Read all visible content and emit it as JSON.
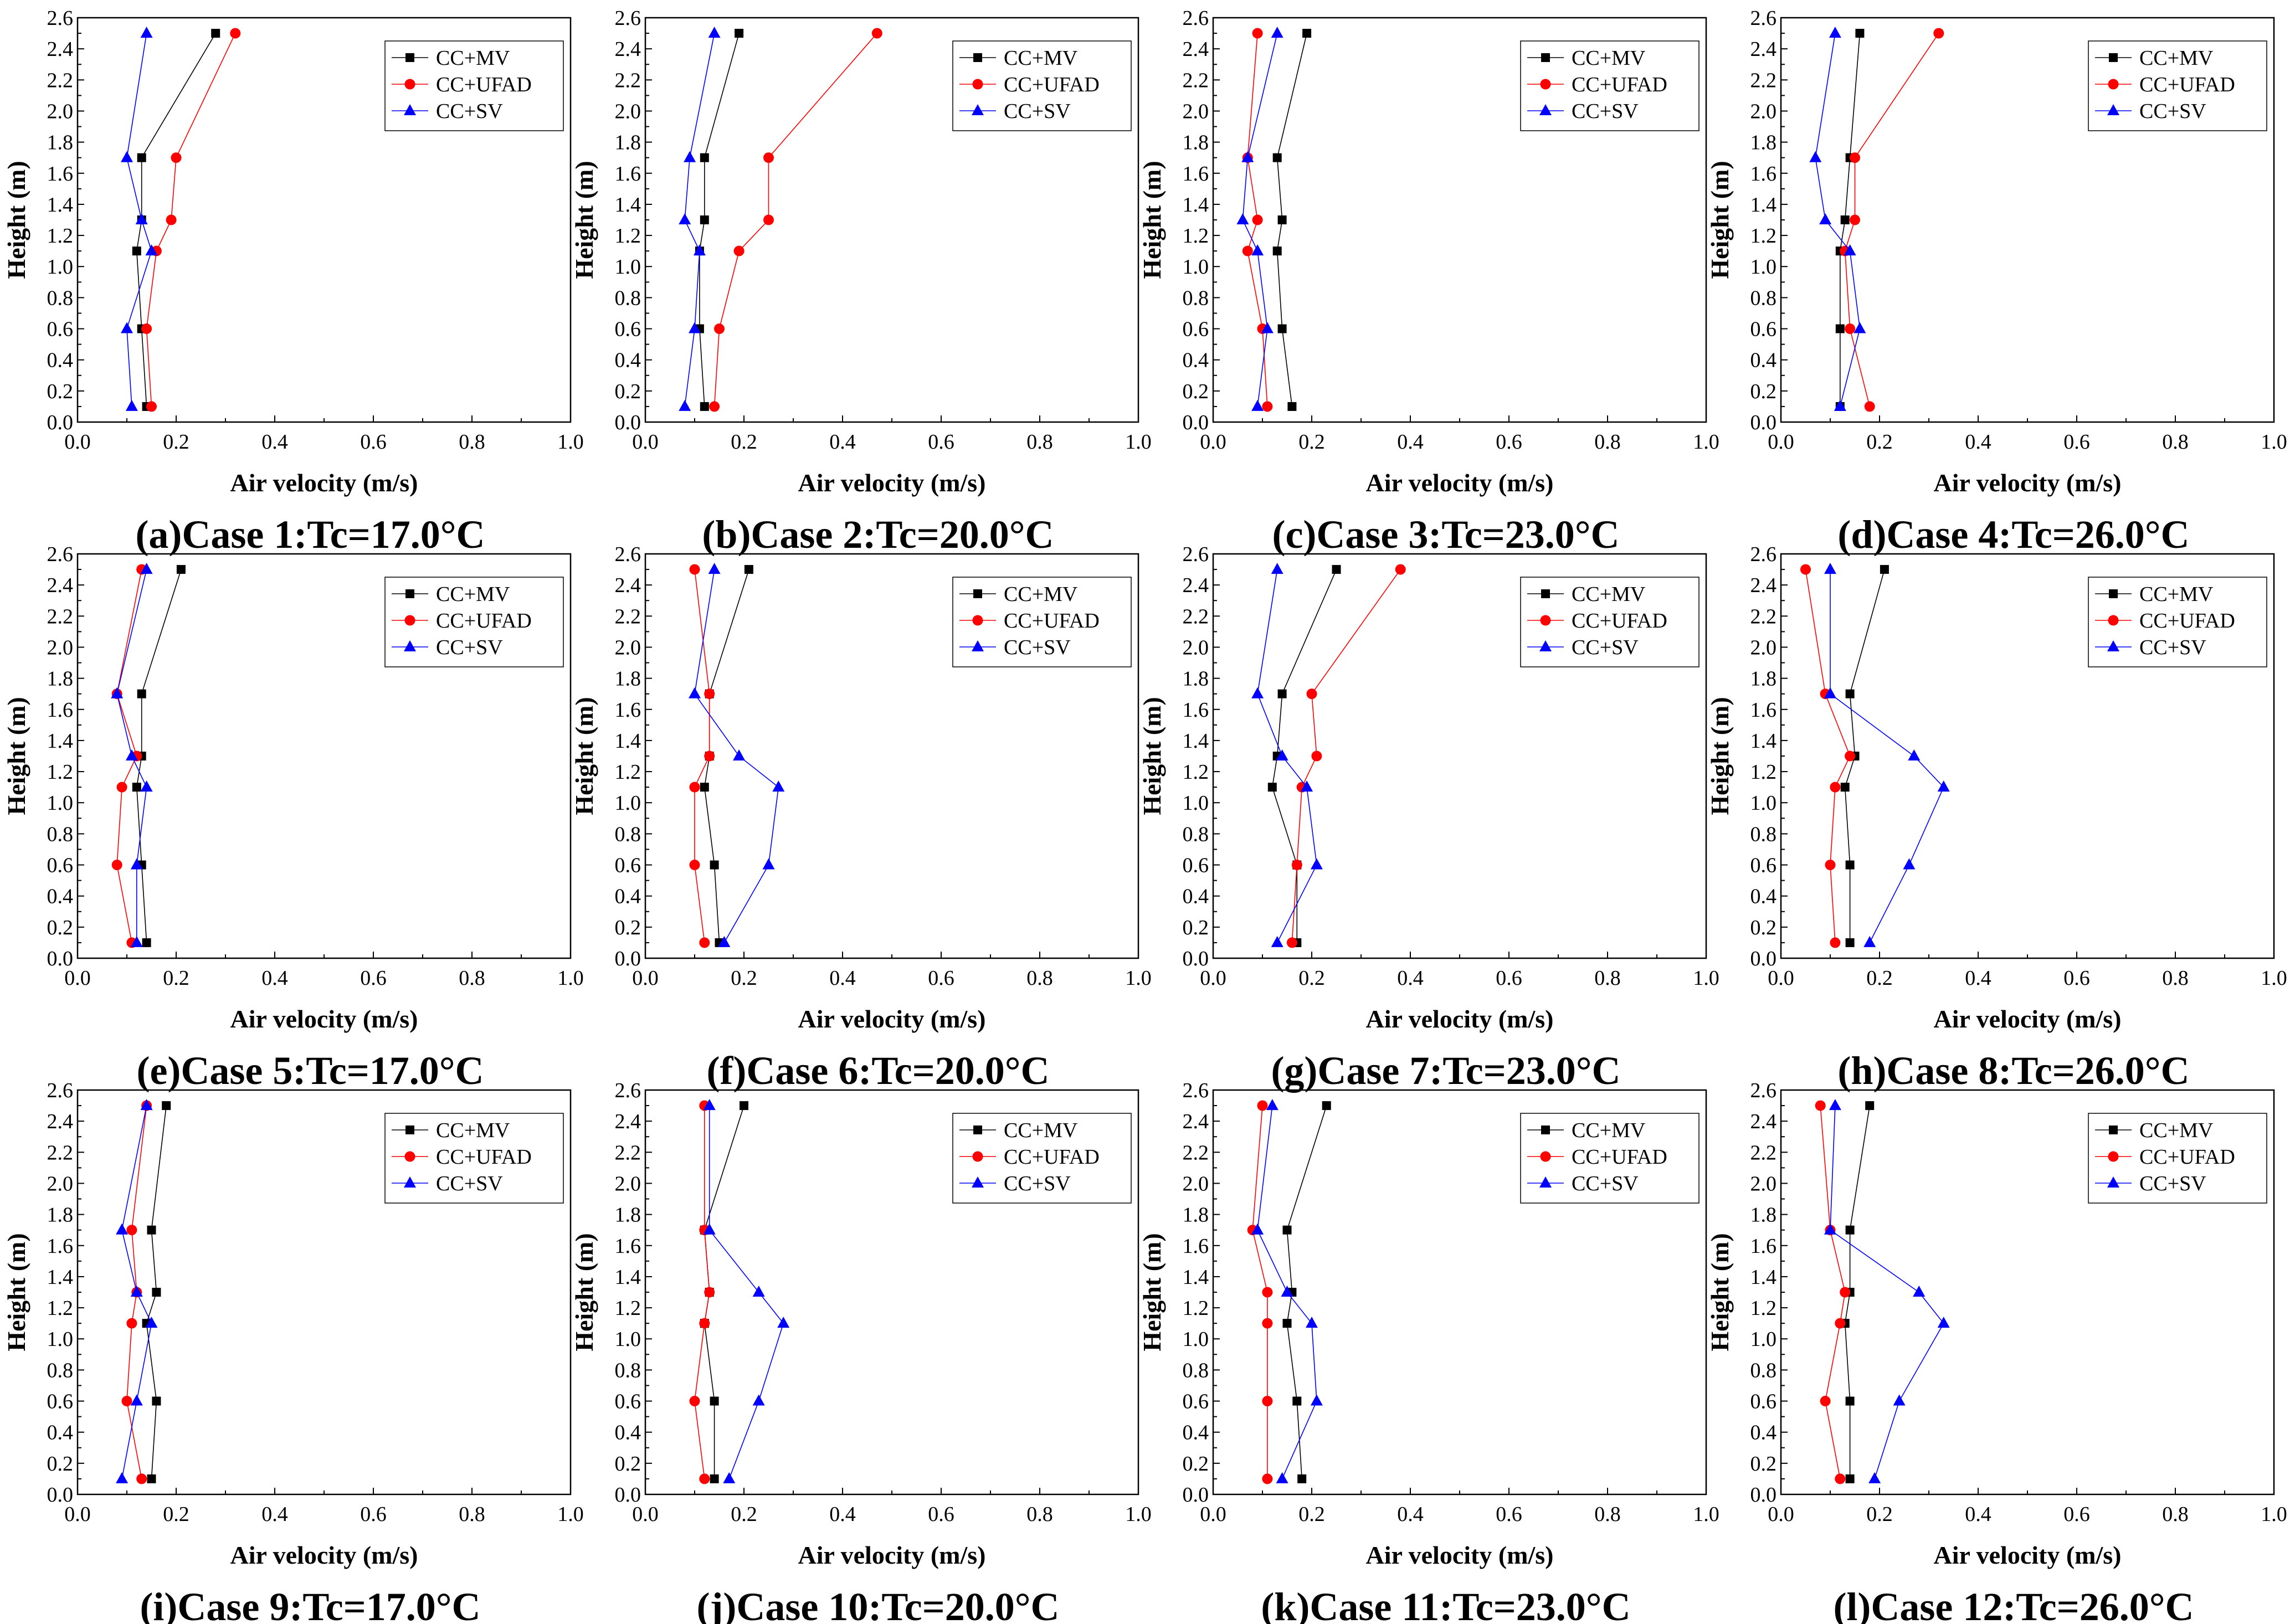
{
  "series_styles": [
    {
      "name": "CC+MV",
      "color": "#000000",
      "marker": "square"
    },
    {
      "name": "CC+UFAD",
      "color": "#ff0000",
      "marker": "circle"
    },
    {
      "name": "CC+SV",
      "color": "#0000ff",
      "marker": "triangle"
    }
  ],
  "axes": {
    "xlabel": "Air velocity (m/s)",
    "ylabel": "Height (m)",
    "xlim": [
      0,
      1.0
    ],
    "ylim": [
      0,
      2.6
    ],
    "xticks": [
      "0.0",
      "0.2",
      "0.4",
      "0.6",
      "0.8",
      "1.0"
    ],
    "yticks": [
      "0.0",
      "0.2",
      "0.4",
      "0.6",
      "0.8",
      "1.0",
      "1.2",
      "1.4",
      "1.6",
      "1.8",
      "2.0",
      "2.2",
      "2.4",
      "2.6"
    ]
  },
  "chart_data": [
    {
      "type": "line",
      "caption": "(a)Case 1:Tc=17.0°C",
      "y": [
        0.1,
        0.6,
        1.1,
        1.3,
        1.7,
        2.5
      ],
      "series": [
        {
          "name": "CC+MV",
          "values": [
            0.14,
            0.13,
            0.12,
            0.13,
            0.13,
            0.28
          ]
        },
        {
          "name": "CC+UFAD",
          "values": [
            0.15,
            0.14,
            0.16,
            0.19,
            0.2,
            0.32
          ]
        },
        {
          "name": "CC+SV",
          "values": [
            0.11,
            0.1,
            0.15,
            0.13,
            0.1,
            0.14
          ]
        }
      ]
    },
    {
      "type": "line",
      "caption": "(b)Case 2:Tc=20.0°C",
      "y": [
        0.1,
        0.6,
        1.1,
        1.3,
        1.7,
        2.5
      ],
      "series": [
        {
          "name": "CC+MV",
          "values": [
            0.12,
            0.11,
            0.11,
            0.12,
            0.12,
            0.19
          ]
        },
        {
          "name": "CC+UFAD",
          "values": [
            0.14,
            0.15,
            0.19,
            0.25,
            0.25,
            0.47
          ]
        },
        {
          "name": "CC+SV",
          "values": [
            0.08,
            0.1,
            0.11,
            0.08,
            0.09,
            0.14
          ]
        }
      ]
    },
    {
      "type": "line",
      "caption": "(c)Case 3:Tc=23.0°C",
      "y": [
        0.1,
        0.6,
        1.1,
        1.3,
        1.7,
        2.5
      ],
      "series": [
        {
          "name": "CC+MV",
          "values": [
            0.16,
            0.14,
            0.13,
            0.14,
            0.13,
            0.19
          ]
        },
        {
          "name": "CC+UFAD",
          "values": [
            0.11,
            0.1,
            0.07,
            0.09,
            0.07,
            0.09
          ]
        },
        {
          "name": "CC+SV",
          "values": [
            0.09,
            0.11,
            0.09,
            0.06,
            0.07,
            0.13
          ]
        }
      ]
    },
    {
      "type": "line",
      "caption": "(d)Case 4:Tc=26.0°C",
      "y": [
        0.1,
        0.6,
        1.1,
        1.3,
        1.7,
        2.5
      ],
      "series": [
        {
          "name": "CC+MV",
          "values": [
            0.12,
            0.12,
            0.12,
            0.13,
            0.14,
            0.16
          ]
        },
        {
          "name": "CC+UFAD",
          "values": [
            0.18,
            0.14,
            0.13,
            0.15,
            0.15,
            0.32
          ]
        },
        {
          "name": "CC+SV",
          "values": [
            0.12,
            0.16,
            0.14,
            0.09,
            0.07,
            0.11
          ]
        }
      ]
    },
    {
      "type": "line",
      "caption": "(e)Case 5:Tc=17.0°C",
      "y": [
        0.1,
        0.6,
        1.1,
        1.3,
        1.7,
        2.5
      ],
      "series": [
        {
          "name": "CC+MV",
          "values": [
            0.14,
            0.13,
            0.12,
            0.13,
            0.13,
            0.21
          ]
        },
        {
          "name": "CC+UFAD",
          "values": [
            0.11,
            0.08,
            0.09,
            0.12,
            0.08,
            0.13
          ]
        },
        {
          "name": "CC+SV",
          "values": [
            0.12,
            0.12,
            0.14,
            0.11,
            0.08,
            0.14
          ]
        }
      ]
    },
    {
      "type": "line",
      "caption": "(f)Case 6:Tc=20.0°C",
      "y": [
        0.1,
        0.6,
        1.1,
        1.3,
        1.7,
        2.5
      ],
      "series": [
        {
          "name": "CC+MV",
          "values": [
            0.15,
            0.14,
            0.12,
            0.13,
            0.13,
            0.21
          ]
        },
        {
          "name": "CC+UFAD",
          "values": [
            0.12,
            0.1,
            0.1,
            0.13,
            0.13,
            0.1
          ]
        },
        {
          "name": "CC+SV",
          "values": [
            0.16,
            0.25,
            0.27,
            0.19,
            0.1,
            0.14
          ]
        }
      ]
    },
    {
      "type": "line",
      "caption": "(g)Case 7:Tc=23.0°C",
      "y": [
        0.1,
        0.6,
        1.1,
        1.3,
        1.7,
        2.5
      ],
      "series": [
        {
          "name": "CC+MV",
          "values": [
            0.17,
            0.17,
            0.12,
            0.13,
            0.14,
            0.25
          ]
        },
        {
          "name": "CC+UFAD",
          "values": [
            0.16,
            0.17,
            0.18,
            0.21,
            0.2,
            0.38
          ]
        },
        {
          "name": "CC+SV",
          "values": [
            0.13,
            0.21,
            0.19,
            0.14,
            0.09,
            0.13
          ]
        }
      ]
    },
    {
      "type": "line",
      "caption": "(h)Case 8:Tc=26.0°C",
      "y": [
        0.1,
        0.6,
        1.1,
        1.3,
        1.7,
        2.5
      ],
      "series": [
        {
          "name": "CC+MV",
          "values": [
            0.14,
            0.14,
            0.13,
            0.15,
            0.14,
            0.21
          ]
        },
        {
          "name": "CC+UFAD",
          "values": [
            0.11,
            0.1,
            0.11,
            0.14,
            0.09,
            0.05
          ]
        },
        {
          "name": "CC+SV",
          "values": [
            0.18,
            0.26,
            0.33,
            0.27,
            0.1,
            0.1
          ]
        }
      ]
    },
    {
      "type": "line",
      "caption": "(i)Case 9:Tc=17.0°C",
      "y": [
        0.1,
        0.6,
        1.1,
        1.3,
        1.7,
        2.5
      ],
      "series": [
        {
          "name": "CC+MV",
          "values": [
            0.15,
            0.16,
            0.14,
            0.16,
            0.15,
            0.18
          ]
        },
        {
          "name": "CC+UFAD",
          "values": [
            0.13,
            0.1,
            0.11,
            0.12,
            0.11,
            0.14
          ]
        },
        {
          "name": "CC+SV",
          "values": [
            0.09,
            0.12,
            0.15,
            0.12,
            0.09,
            0.14
          ]
        }
      ]
    },
    {
      "type": "line",
      "caption": "(j)Case 10:Tc=20.0°C",
      "y": [
        0.1,
        0.6,
        1.1,
        1.3,
        1.7,
        2.5
      ],
      "series": [
        {
          "name": "CC+MV",
          "values": [
            0.14,
            0.14,
            0.12,
            0.13,
            0.12,
            0.2
          ]
        },
        {
          "name": "CC+UFAD",
          "values": [
            0.12,
            0.1,
            0.12,
            0.13,
            0.12,
            0.12
          ]
        },
        {
          "name": "CC+SV",
          "values": [
            0.17,
            0.23,
            0.28,
            0.23,
            0.13,
            0.13
          ]
        }
      ]
    },
    {
      "type": "line",
      "caption": "(k)Case 11:Tc=23.0°C",
      "y": [
        0.1,
        0.6,
        1.1,
        1.3,
        1.7,
        2.5
      ],
      "series": [
        {
          "name": "CC+MV",
          "values": [
            0.18,
            0.17,
            0.15,
            0.16,
            0.15,
            0.23
          ]
        },
        {
          "name": "CC+UFAD",
          "values": [
            0.11,
            0.11,
            0.11,
            0.11,
            0.08,
            0.1
          ]
        },
        {
          "name": "CC+SV",
          "values": [
            0.14,
            0.21,
            0.2,
            0.15,
            0.09,
            0.12
          ]
        }
      ]
    },
    {
      "type": "line",
      "caption": "(l)Case 12:Tc=26.0°C",
      "y": [
        0.1,
        0.6,
        1.1,
        1.3,
        1.7,
        2.5
      ],
      "series": [
        {
          "name": "CC+MV",
          "values": [
            0.14,
            0.14,
            0.13,
            0.14,
            0.14,
            0.18
          ]
        },
        {
          "name": "CC+UFAD",
          "values": [
            0.12,
            0.09,
            0.12,
            0.13,
            0.1,
            0.08
          ]
        },
        {
          "name": "CC+SV",
          "values": [
            0.19,
            0.24,
            0.33,
            0.28,
            0.1,
            0.11
          ]
        }
      ]
    }
  ]
}
